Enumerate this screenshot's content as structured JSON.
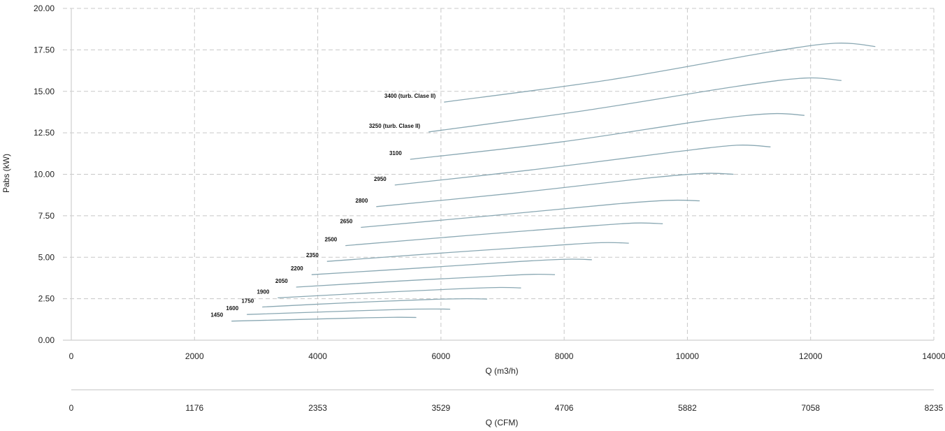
{
  "chart_data": {
    "type": "line",
    "ylabel": "Pabs (kW)",
    "xlabel": "Q (m3/h)",
    "x2label": "Q (CFM)",
    "xlim": [
      0,
      14000
    ],
    "ylim": [
      0,
      20
    ],
    "x_ticks": [
      "0",
      "2000",
      "4000",
      "6000",
      "8000",
      "10000",
      "12000",
      "14000"
    ],
    "x2_ticks": [
      "0",
      "1176",
      "2353",
      "3529",
      "4706",
      "5882",
      "7058",
      "8235"
    ],
    "y_ticks": [
      "0.00",
      "2.50",
      "5.00",
      "7.50",
      "10.00",
      "12.50",
      "15.00",
      "17.50",
      "20.00"
    ],
    "grid": true,
    "line_color": "#8aa8b3",
    "series": [
      {
        "name": "1450",
        "points": [
          [
            2600,
            1.15
          ],
          [
            3700,
            1.25
          ],
          [
            4800,
            1.35
          ],
          [
            5300,
            1.38
          ],
          [
            5600,
            1.37
          ]
        ]
      },
      {
        "name": "1600",
        "points": [
          [
            2850,
            1.55
          ],
          [
            4050,
            1.7
          ],
          [
            5300,
            1.85
          ],
          [
            5850,
            1.88
          ],
          [
            6150,
            1.87
          ]
        ]
      },
      {
        "name": "1750",
        "points": [
          [
            3100,
            2.0
          ],
          [
            4450,
            2.25
          ],
          [
            5800,
            2.45
          ],
          [
            6400,
            2.5
          ],
          [
            6750,
            2.48
          ]
        ]
      },
      {
        "name": "1900",
        "points": [
          [
            3350,
            2.55
          ],
          [
            4850,
            2.85
          ],
          [
            6300,
            3.1
          ],
          [
            6950,
            3.18
          ],
          [
            7300,
            3.15
          ]
        ]
      },
      {
        "name": "2050",
        "points": [
          [
            3650,
            3.2
          ],
          [
            5250,
            3.55
          ],
          [
            6800,
            3.85
          ],
          [
            7500,
            3.97
          ],
          [
            7850,
            3.95
          ]
        ]
      },
      {
        "name": "2200",
        "points": [
          [
            3900,
            3.95
          ],
          [
            5650,
            4.35
          ],
          [
            7300,
            4.75
          ],
          [
            8050,
            4.88
          ],
          [
            8450,
            4.85
          ]
        ]
      },
      {
        "name": "2350",
        "points": [
          [
            4150,
            4.75
          ],
          [
            6000,
            5.25
          ],
          [
            7800,
            5.7
          ],
          [
            8600,
            5.88
          ],
          [
            9050,
            5.85
          ]
        ]
      },
      {
        "name": "2500",
        "points": [
          [
            4450,
            5.7
          ],
          [
            6400,
            6.3
          ],
          [
            8300,
            6.85
          ],
          [
            9150,
            7.06
          ],
          [
            9600,
            7.02
          ]
        ]
      },
      {
        "name": "2650",
        "points": [
          [
            4700,
            6.8
          ],
          [
            6800,
            7.5
          ],
          [
            8800,
            8.2
          ],
          [
            9700,
            8.43
          ],
          [
            10200,
            8.4
          ]
        ]
      },
      {
        "name": "2800",
        "points": [
          [
            4950,
            8.05
          ],
          [
            7150,
            8.85
          ],
          [
            9300,
            9.75
          ],
          [
            10250,
            10.05
          ],
          [
            10750,
            10.0
          ]
        ]
      },
      {
        "name": "2950",
        "points": [
          [
            5250,
            9.35
          ],
          [
            7550,
            10.3
          ],
          [
            9800,
            11.35
          ],
          [
            10800,
            11.75
          ],
          [
            11350,
            11.65
          ]
        ]
      },
      {
        "name": "3100",
        "points": [
          [
            5500,
            10.9
          ],
          [
            7950,
            11.95
          ],
          [
            10300,
            13.25
          ],
          [
            11350,
            13.65
          ],
          [
            11900,
            13.55
          ]
        ]
      },
      {
        "name": "3250 (turb. Clase II)",
        "points": [
          [
            5800,
            12.55
          ],
          [
            8350,
            13.85
          ],
          [
            10800,
            15.3
          ],
          [
            11900,
            15.8
          ],
          [
            12500,
            15.65
          ]
        ]
      },
      {
        "name": "3400 (turb. Clase II)",
        "points": [
          [
            6050,
            14.35
          ],
          [
            8750,
            15.7
          ],
          [
            11300,
            17.35
          ],
          [
            12400,
            17.9
          ],
          [
            13050,
            17.7
          ]
        ]
      }
    ]
  }
}
